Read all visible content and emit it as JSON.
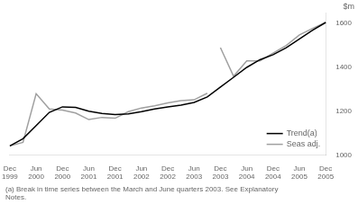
{
  "chart_data": {
    "type": "line",
    "ylabel": "$m",
    "categories": [
      "Dec\n1999",
      null,
      "Jun\n2000",
      null,
      "Dec\n2000",
      null,
      "Jun\n2001",
      null,
      "Dec\n2001",
      null,
      "Jun\n2002",
      null,
      "Dec\n2002",
      null,
      "Jun\n2003",
      null,
      "Dec\n2003",
      null,
      "Jun\n2004",
      null,
      "Dec\n2004",
      null,
      "Jun\n2005",
      null,
      "Dec\n2005"
    ],
    "series": [
      {
        "name": "Trend(a)",
        "color": "#000000",
        "values": [
          1042,
          1075,
          1135,
          1195,
          1220,
          1218,
          1200,
          1190,
          1185,
          1188,
          1198,
          1210,
          1220,
          1228,
          1240,
          1265,
          1310,
          1355,
          1400,
          1435,
          1458,
          1490,
          1530,
          1570,
          1605
        ]
      },
      {
        "name": "Seas adj.",
        "color": "#a0a0a0",
        "values": [
          1042,
          1058,
          1280,
          1210,
          1205,
          1192,
          1162,
          1172,
          1168,
          1198,
          1215,
          1225,
          1238,
          1248,
          1252,
          1282,
          null,
          null,
          null,
          null,
          null,
          null,
          null,
          null,
          null
        ]
      },
      {
        "name": "Seas adj.",
        "color": "#a0a0a0",
        "values": [
          null,
          null,
          null,
          null,
          null,
          null,
          null,
          null,
          null,
          null,
          null,
          null,
          null,
          null,
          null,
          null,
          1490,
          1360,
          1430,
          1430,
          1465,
          1500,
          1548,
          1578,
          1605
        ]
      }
    ],
    "ylim": [
      1000,
      1650
    ],
    "yticks": [
      1000,
      1200,
      1400,
      1600
    ],
    "grid": false,
    "legend": "lower right",
    "annotations": [
      "(a) Break in time series between the March and June quarters 2003. See Explanatory\nNotes."
    ]
  }
}
